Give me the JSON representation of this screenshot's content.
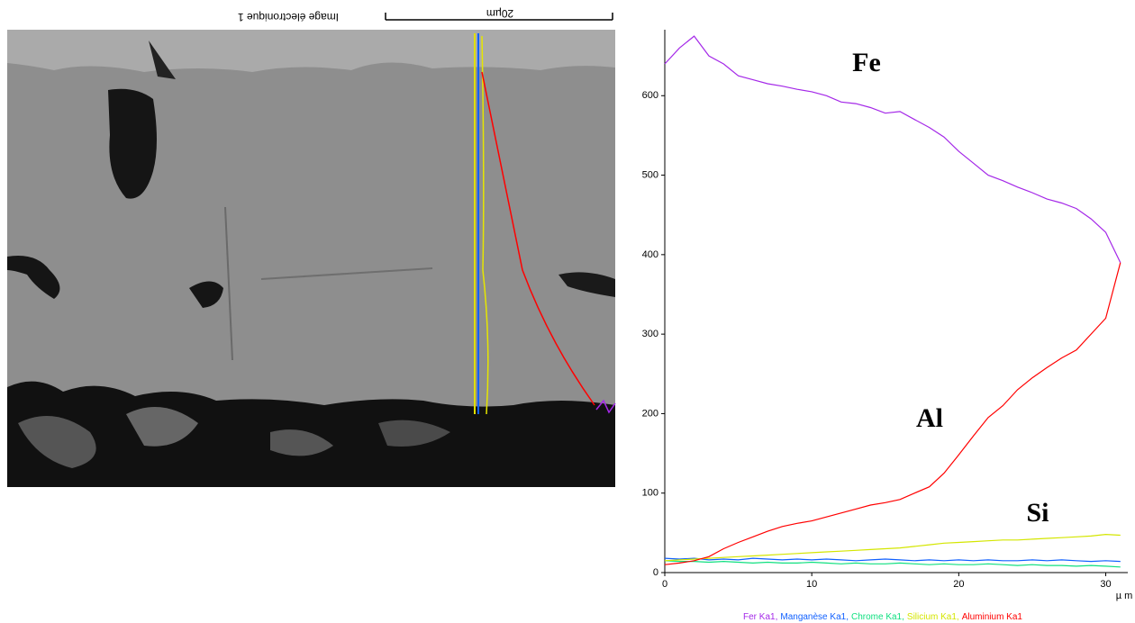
{
  "image": {
    "caption": "Image électronique 1",
    "scale_label": "20µm"
  },
  "chart_data": {
    "type": "line",
    "x": [
      0,
      1,
      2,
      3,
      4,
      5,
      6,
      7,
      8,
      9,
      10,
      11,
      12,
      13,
      14,
      15,
      16,
      17,
      18,
      19,
      20,
      21,
      22,
      23,
      24,
      25,
      26,
      27,
      28,
      29,
      30,
      31
    ],
    "xlim": [
      0,
      31.5
    ],
    "xticks": [
      0,
      10,
      20,
      30
    ],
    "x_label": "µ m",
    "ylim": [
      0,
      683
    ],
    "yticks": [
      0,
      100,
      200,
      300,
      400,
      500,
      600
    ],
    "annotations": [
      "Fe",
      "Al",
      "Si"
    ],
    "series": [
      {
        "name": "Fer Ka1,",
        "color": "#a428e8",
        "values": [
          640,
          660,
          675,
          650,
          640,
          625,
          620,
          615,
          612,
          608,
          605,
          600,
          592,
          590,
          585,
          578,
          580,
          570,
          560,
          548,
          530,
          515,
          500,
          493,
          485,
          478,
          470,
          465,
          458,
          445,
          428,
          390
        ]
      },
      {
        "name": "Manganèse Ka1,",
        "color": "#1060ff",
        "values": [
          18,
          17,
          18,
          16,
          17,
          16,
          18,
          17,
          16,
          17,
          16,
          17,
          16,
          15,
          16,
          17,
          16,
          15,
          16,
          15,
          16,
          15,
          16,
          15,
          15,
          16,
          15,
          16,
          15,
          14,
          15,
          14
        ]
      },
      {
        "name": "Chrome Ka1,",
        "color": "#10e080",
        "values": [
          15,
          14,
          14,
          13,
          14,
          13,
          12,
          13,
          12,
          12,
          13,
          12,
          11,
          12,
          11,
          11,
          12,
          11,
          10,
          11,
          10,
          10,
          11,
          10,
          9,
          10,
          9,
          9,
          8,
          9,
          8,
          7
        ]
      },
      {
        "name": "Silicium Ka1,",
        "color": "#d4e600",
        "values": [
          15,
          16,
          17,
          18,
          19,
          20,
          21,
          22,
          23,
          24,
          25,
          26,
          27,
          28,
          29,
          30,
          31,
          33,
          35,
          37,
          38,
          39,
          40,
          41,
          41,
          42,
          43,
          44,
          45,
          46,
          48,
          47
        ]
      },
      {
        "name": "Aluminium Ka1",
        "color": "#ff0000",
        "values": [
          10,
          12,
          15,
          20,
          30,
          38,
          45,
          52,
          58,
          62,
          65,
          70,
          75,
          80,
          85,
          88,
          92,
          100,
          108,
          125,
          148,
          172,
          195,
          210,
          230,
          245,
          258,
          270,
          280,
          300,
          320,
          390
        ]
      }
    ]
  }
}
